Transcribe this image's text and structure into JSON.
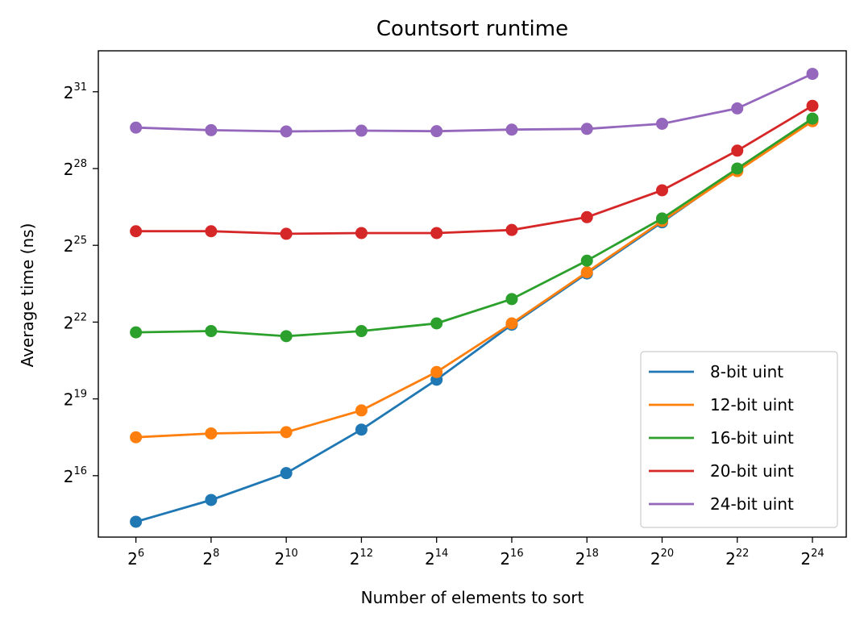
{
  "chart_data": {
    "type": "line",
    "title": "Countsort runtime",
    "xlabel": "Number of elements to sort",
    "ylabel": "Average time (ns)",
    "x_scale": "log2",
    "y_scale": "log2",
    "x_log2": [
      6,
      8,
      10,
      12,
      14,
      16,
      18,
      20,
      22,
      24
    ],
    "xticks": [
      {
        "base": "2",
        "exp": "6"
      },
      {
        "base": "2",
        "exp": "8"
      },
      {
        "base": "2",
        "exp": "10"
      },
      {
        "base": "2",
        "exp": "12"
      },
      {
        "base": "2",
        "exp": "14"
      },
      {
        "base": "2",
        "exp": "16"
      },
      {
        "base": "2",
        "exp": "18"
      },
      {
        "base": "2",
        "exp": "20"
      },
      {
        "base": "2",
        "exp": "22"
      },
      {
        "base": "2",
        "exp": "24"
      }
    ],
    "yticks": [
      {
        "base": "2",
        "exp": "16"
      },
      {
        "base": "2",
        "exp": "19"
      },
      {
        "base": "2",
        "exp": "22"
      },
      {
        "base": "2",
        "exp": "25"
      },
      {
        "base": "2",
        "exp": "28"
      },
      {
        "base": "2",
        "exp": "31"
      }
    ],
    "xlim_log2": [
      5.0,
      24.9
    ],
    "ylim_log2": [
      13.6,
      32.6
    ],
    "grid": false,
    "legend_position": "lower right",
    "series": [
      {
        "name": "8-bit uint",
        "color": "#1f77b4",
        "y_log2": [
          14.2,
          15.05,
          16.1,
          17.8,
          19.75,
          21.9,
          23.9,
          25.9,
          27.95,
          29.9
        ]
      },
      {
        "name": "12-bit uint",
        "color": "#ff7f0e",
        "y_log2": [
          17.5,
          17.65,
          17.7,
          18.55,
          20.05,
          21.95,
          23.95,
          25.95,
          27.9,
          29.85
        ]
      },
      {
        "name": "16-bit uint",
        "color": "#2ca02c",
        "y_log2": [
          21.6,
          21.65,
          21.45,
          21.65,
          21.95,
          22.9,
          24.4,
          26.05,
          28.0,
          29.95
        ]
      },
      {
        "name": "20-bit uint",
        "color": "#d62728",
        "y_log2": [
          25.55,
          25.55,
          25.45,
          25.48,
          25.48,
          25.6,
          26.1,
          27.15,
          28.7,
          30.45
        ]
      },
      {
        "name": "24-bit uint",
        "color": "#9467bd",
        "y_log2": [
          29.6,
          29.5,
          29.45,
          29.48,
          29.46,
          29.52,
          29.55,
          29.75,
          30.35,
          31.7
        ]
      }
    ]
  }
}
